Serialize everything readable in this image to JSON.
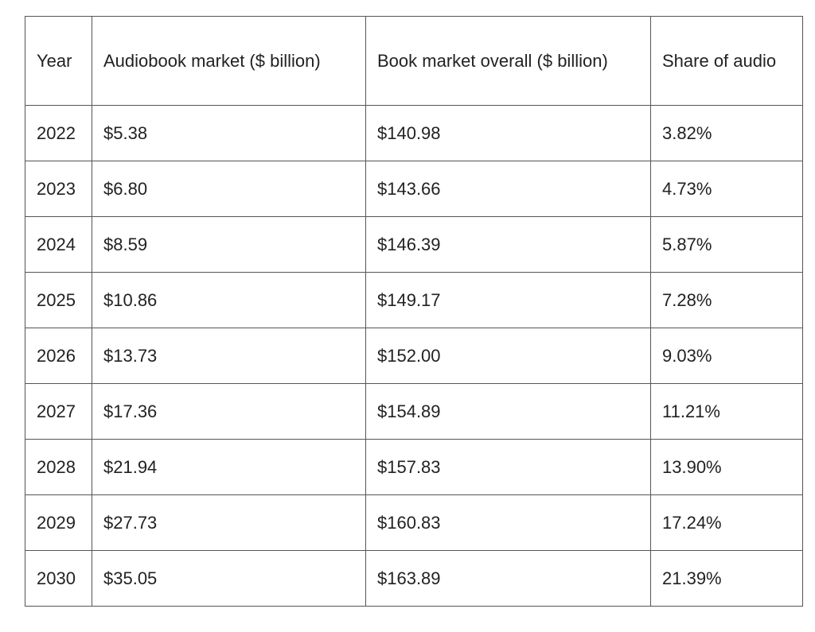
{
  "table": {
    "headers": [
      "Year",
      "Audiobook market ($ billion)",
      "Book market overall ($ billion)",
      "Share of audio"
    ],
    "rows": [
      [
        "2022",
        "$5.38",
        "$140.98",
        "3.82%"
      ],
      [
        "2023",
        "$6.80",
        "$143.66",
        "4.73%"
      ],
      [
        "2024",
        "$8.59",
        "$146.39",
        "5.87%"
      ],
      [
        "2025",
        "$10.86",
        "$149.17",
        "7.28%"
      ],
      [
        "2026",
        "$13.73",
        "$152.00",
        "9.03%"
      ],
      [
        "2027",
        "$17.36",
        "$154.89",
        "11.21%"
      ],
      [
        "2028",
        "$21.94",
        "$157.83",
        "13.90%"
      ],
      [
        "2029",
        "$27.73",
        "$160.83",
        "17.24%"
      ],
      [
        "2030",
        "$35.05",
        "$163.89",
        "21.39%"
      ]
    ]
  },
  "colors": {
    "border": "#555555",
    "text": "#222222",
    "background": "#ffffff"
  }
}
